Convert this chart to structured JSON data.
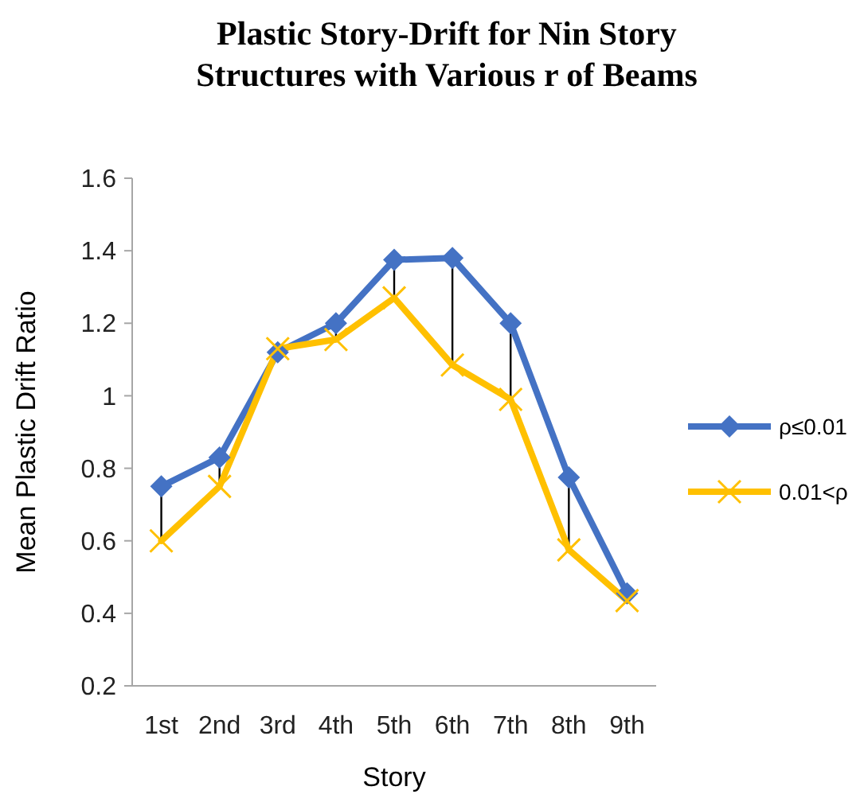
{
  "chart_data": {
    "type": "line",
    "title": "Plastic Story-Drift for Nin Story Structures with Various r of Beams",
    "xlabel": "Story",
    "ylabel": "Mean Plastic Drift Ratio",
    "categories": [
      "1st",
      "2nd",
      "3rd",
      "4th",
      "5th",
      "6th",
      "7th",
      "8th",
      "9th"
    ],
    "series": [
      {
        "name": "ρ≤0.01",
        "color": "#4472c4",
        "marker": "diamond",
        "values": [
          0.75,
          0.83,
          1.12,
          1.2,
          1.375,
          1.38,
          1.2,
          0.775,
          0.455
        ]
      },
      {
        "name": "0.01<ρ",
        "color": "#ffc000",
        "marker": "cross",
        "values": [
          0.6,
          0.75,
          1.13,
          1.155,
          1.27,
          1.085,
          0.99,
          0.575,
          0.435
        ]
      }
    ],
    "ylim": [
      0.2,
      1.6
    ],
    "yticks": [
      0.2,
      0.4,
      0.6,
      {
        "value": 0.8,
        "label": "0.8"
      },
      1,
      1.2,
      1.4,
      1.6
    ],
    "grid": false,
    "legend": "right"
  }
}
